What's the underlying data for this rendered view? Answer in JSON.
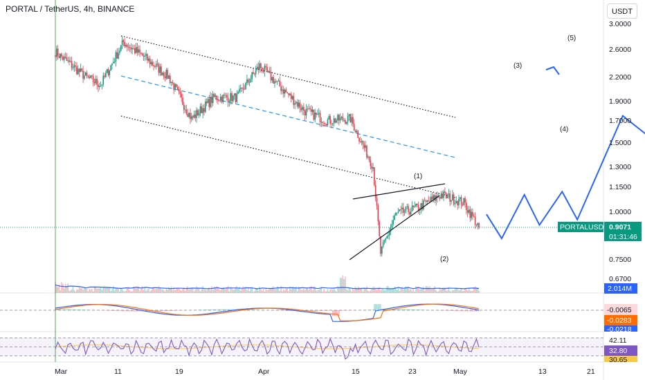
{
  "header": {
    "title": "PORTAL / TetherUS, 4h, BINANCE",
    "currency_button": "USDT"
  },
  "price_axis": {
    "ticks": [
      "3.0000",
      "2.6000",
      "2.2000",
      "1.9000",
      "1.7000",
      "1.5000",
      "1.3000",
      "1.1500",
      "1.0000",
      "0.7500",
      "0.6700"
    ]
  },
  "time_axis": {
    "ticks": [
      "Mar",
      "11",
      "19",
      "Apr",
      "15",
      "23",
      "May",
      "13",
      "21"
    ]
  },
  "last_price": {
    "symbol": "PORTALUSDT",
    "price": "0.9071",
    "countdown": "01:31:46",
    "color": "#089981"
  },
  "volume": {
    "label": "2.014M",
    "color": "#2962ff"
  },
  "macd": {
    "label1": "-0.0065",
    "label2": "-0.0283",
    "label3": "-0.0218",
    "line_color": "#2962ff",
    "signal_color": "#ff6d00"
  },
  "rsi": {
    "label1": "42.11",
    "label2": "32.80",
    "label3": "30.65",
    "line_color": "#7e57c2"
  },
  "wave_labels": [
    "(1)",
    "(2)",
    "(3)",
    "(4)",
    "(5)"
  ],
  "colors": {
    "up": "#089981",
    "down": "#f23645",
    "projection": "#2962ff",
    "midline": "#2196f3"
  },
  "chart_data": {
    "type": "candlestick",
    "symbol": "PORTAL / TetherUS",
    "interval": "4h",
    "exchange": "BINANCE",
    "scale": "log",
    "approx_closes": [
      [
        "Mar",
        2.55
      ],
      [
        "Mar 5",
        2.2
      ],
      [
        "Mar 7",
        2.1
      ],
      [
        "Mar 10",
        2.7
      ],
      [
        "Mar 13",
        2.45
      ],
      [
        "Mar 16",
        2.2
      ],
      [
        "Mar 19",
        1.72
      ],
      [
        "Mar 22",
        1.95
      ],
      [
        "Mar 25",
        1.95
      ],
      [
        "Mar 28",
        2.35
      ],
      [
        "Mar 31",
        2.05
      ],
      [
        "Apr 3",
        1.8
      ],
      [
        "Apr 6",
        1.7
      ],
      [
        "Apr 9",
        1.72
      ],
      [
        "Apr 12",
        1.3
      ],
      [
        "Apr 13",
        0.78
      ],
      [
        "Apr 15",
        0.98
      ],
      [
        "Apr 18",
        1.02
      ],
      [
        "Apr 21",
        1.1
      ],
      [
        "Apr 24",
        1.05
      ],
      [
        "Apr 26",
        0.9071
      ]
    ],
    "last_price": 0.9071,
    "projection_path": [
      [
        "Apr 27",
        0.98
      ],
      [
        "Apr 29",
        0.85
      ],
      [
        "May 2",
        1.1
      ],
      [
        "May 4",
        0.92
      ],
      [
        "May 7",
        1.12
      ],
      [
        "May 9",
        0.95
      ],
      [
        "May 15",
        1.75
      ],
      [
        "May 19",
        1.52
      ],
      [
        "May 23",
        2.3
      ]
    ],
    "volume_last": "2.014M",
    "macd_values": [
      -0.0065,
      -0.0283,
      -0.0218
    ],
    "rsi_values": [
      42.11,
      32.8,
      30.65
    ]
  }
}
